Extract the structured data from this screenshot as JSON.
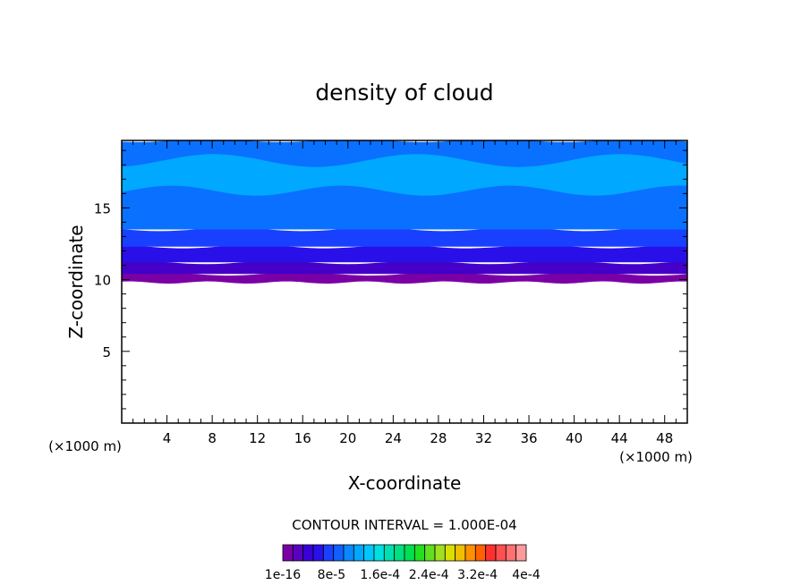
{
  "chart_data": {
    "type": "contour",
    "title": "density of cloud",
    "xlabel": "X-coordinate",
    "ylabel": "Z-coordinate",
    "x_unit": "(×1000 m)",
    "xlim": [
      0,
      50
    ],
    "ylim": [
      0,
      19.7
    ],
    "x_ticks": [
      "4",
      "8",
      "12",
      "16",
      "20",
      "24",
      "28",
      "32",
      "36",
      "40",
      "44",
      "48"
    ],
    "y_ticks": [
      "5",
      "10",
      "15"
    ],
    "contour_interval_text": "CONTOUR INTERVAL = 1.000E-04",
    "colorbar_labels": [
      "1e-16",
      "8e-5",
      "1.6e-4",
      "2.4e-4",
      "3.2e-4",
      "4e-4"
    ],
    "colorbar_colors": [
      "#7a00a6",
      "#5a00c0",
      "#3a00d8",
      "#2a10e8",
      "#1a40ff",
      "#1060ff",
      "#0a88ff",
      "#00a8ff",
      "#00c8ff",
      "#00e0e0",
      "#00e0b0",
      "#00e080",
      "#00e050",
      "#20e020",
      "#60e020",
      "#a0e020",
      "#d8e000",
      "#f0c000",
      "#ff9000",
      "#ff6000",
      "#ff3030",
      "#ff5050",
      "#ff7070",
      "#ff9a9a"
    ],
    "layers": [
      {
        "name": "purple base",
        "color": "#7a00a6",
        "z_bottom": 9.8,
        "z_top": 10.4
      },
      {
        "name": "dark violet",
        "color": "#4400c8",
        "z_bottom": 10.4,
        "z_top": 11.2
      },
      {
        "name": "indigo",
        "color": "#2a10e8",
        "z_bottom": 11.2,
        "z_top": 12.3
      },
      {
        "name": "blue",
        "color": "#1a40ff",
        "z_bottom": 12.3,
        "z_top": 13.5
      },
      {
        "name": "medium blue",
        "color": "#0a70ff",
        "z_bottom": 13.5,
        "z_top": 19.7
      },
      {
        "name": "light blue band",
        "color": "#00a8ff",
        "z_bottom": 16.2,
        "z_top": 18.3
      }
    ],
    "grid": false
  }
}
